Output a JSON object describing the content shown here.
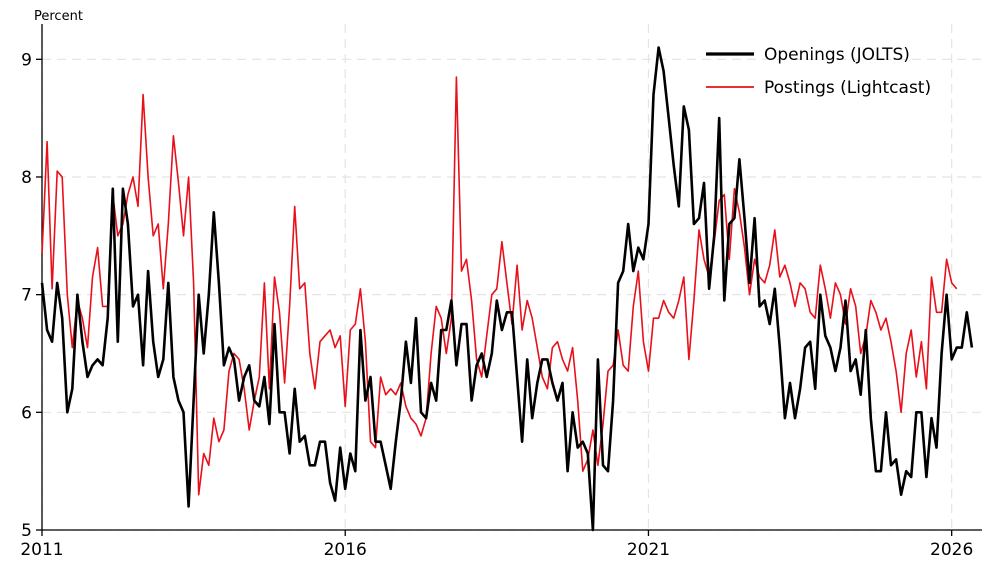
{
  "chart_data": {
    "type": "line",
    "title": "",
    "xlabel": "",
    "ylabel": "Percent",
    "xlim": [
      2011,
      2026.5
    ],
    "ylim": [
      5,
      9.3
    ],
    "x_ticks": [
      2011,
      2016,
      2021,
      2026
    ],
    "x_tick_labels": [
      "2011",
      "2016",
      "2021",
      "2026"
    ],
    "y_ticks": [
      5,
      6,
      7,
      8,
      9
    ],
    "y_tick_labels": [
      "5",
      "6",
      "7",
      "8",
      "9"
    ],
    "grid": true,
    "legend_position": "top-right",
    "start": "2011-01",
    "frequency": "monthly",
    "series": [
      {
        "name": "Openings (JOLTS)",
        "color": "#000000",
        "values": [
          7.1,
          6.7,
          6.6,
          7.1,
          6.8,
          6.0,
          6.2,
          7.0,
          6.6,
          6.3,
          6.4,
          6.45,
          6.4,
          6.8,
          7.9,
          6.6,
          7.9,
          7.6,
          6.9,
          7.0,
          6.4,
          7.2,
          6.6,
          6.3,
          6.45,
          7.1,
          6.3,
          6.1,
          6.0,
          5.2,
          6.1,
          7.0,
          6.5,
          7.0,
          7.7,
          7.1,
          6.4,
          6.55,
          6.45,
          6.1,
          6.3,
          6.4,
          6.1,
          6.05,
          6.3,
          5.9,
          6.75,
          6.0,
          6.0,
          5.65,
          6.2,
          5.75,
          5.8,
          5.55,
          5.55,
          5.75,
          5.75,
          5.4,
          5.25,
          5.7,
          5.35,
          5.65,
          5.5,
          6.7,
          6.1,
          6.3,
          5.75,
          5.75,
          5.55,
          5.35,
          5.75,
          6.1,
          6.6,
          6.25,
          6.8,
          6.0,
          5.95,
          6.25,
          6.1,
          6.7,
          6.7,
          6.95,
          6.4,
          6.75,
          6.75,
          6.1,
          6.4,
          6.5,
          6.3,
          6.5,
          6.95,
          6.7,
          6.85,
          6.85,
          6.3,
          5.75,
          6.45,
          5.95,
          6.25,
          6.45,
          6.45,
          6.25,
          6.1,
          6.25,
          5.5,
          6.0,
          5.7,
          5.75,
          5.65,
          5.0,
          6.45,
          5.55,
          5.5,
          6.1,
          7.1,
          7.2,
          7.6,
          7.2,
          7.4,
          7.3,
          7.6,
          8.7,
          9.1,
          8.9,
          8.5,
          8.1,
          7.75,
          8.6,
          8.4,
          7.6,
          7.65,
          7.95,
          7.05,
          7.5,
          8.5,
          6.95,
          7.6,
          7.65,
          8.15,
          7.65,
          7.1,
          7.65,
          6.9,
          6.95,
          6.75,
          7.05,
          6.55,
          5.95,
          6.25,
          5.95,
          6.2,
          6.55,
          6.6,
          6.2,
          7.0,
          6.65,
          6.55,
          6.35,
          6.55,
          6.95,
          6.35,
          6.45,
          6.15,
          6.7,
          5.95,
          5.5,
          5.5,
          6.0,
          5.55,
          5.6,
          5.3,
          5.5,
          5.45,
          6.0,
          6.0,
          5.45,
          5.95,
          5.7,
          6.5,
          7.0,
          6.45,
          6.55,
          6.55,
          6.85,
          6.55
        ]
      },
      {
        "name": "Postings (Lightcast)",
        "color": "#e8101a",
        "values": [
          7.35,
          8.3,
          7.05,
          8.05,
          8.0,
          7.0,
          6.55,
          6.95,
          6.8,
          6.55,
          7.15,
          7.4,
          6.9,
          6.9,
          7.85,
          7.5,
          7.6,
          7.85,
          8.0,
          7.75,
          8.7,
          8.0,
          7.5,
          7.6,
          7.05,
          7.6,
          8.35,
          7.95,
          7.5,
          8.0,
          7.1,
          5.3,
          5.65,
          5.55,
          5.95,
          5.75,
          5.85,
          6.35,
          6.5,
          6.45,
          6.2,
          5.85,
          6.1,
          6.3,
          7.1,
          6.2,
          7.15,
          6.85,
          6.25,
          6.9,
          7.75,
          7.05,
          7.1,
          6.5,
          6.2,
          6.6,
          6.65,
          6.7,
          6.55,
          6.65,
          6.05,
          6.7,
          6.75,
          7.05,
          6.6,
          5.75,
          5.7,
          6.3,
          6.15,
          6.2,
          6.15,
          6.25,
          6.05,
          5.95,
          5.9,
          5.8,
          5.95,
          6.5,
          6.9,
          6.8,
          6.5,
          6.8,
          8.85,
          7.2,
          7.3,
          6.95,
          6.45,
          6.3,
          6.65,
          7.0,
          7.05,
          7.45,
          7.1,
          6.75,
          7.25,
          6.7,
          6.95,
          6.8,
          6.55,
          6.3,
          6.2,
          6.55,
          6.6,
          6.45,
          6.35,
          6.55,
          6.1,
          5.5,
          5.6,
          5.85,
          5.55,
          5.9,
          6.35,
          6.4,
          6.7,
          6.4,
          6.35,
          6.9,
          7.2,
          6.6,
          6.35,
          6.8,
          6.8,
          6.95,
          6.85,
          6.8,
          6.95,
          7.15,
          6.45,
          6.95,
          7.55,
          7.3,
          7.15,
          7.45,
          7.8,
          7.85,
          7.3,
          7.9,
          7.7,
          7.4,
          7.0,
          7.3,
          7.15,
          7.1,
          7.25,
          7.55,
          7.15,
          7.25,
          7.1,
          6.9,
          7.1,
          7.05,
          6.85,
          6.8,
          7.25,
          7.05,
          6.8,
          7.1,
          7.0,
          6.75,
          7.05,
          6.9,
          6.5,
          6.65,
          6.95,
          6.85,
          6.7,
          6.8,
          6.6,
          6.35,
          6.0,
          6.5,
          6.7,
          6.3,
          6.6,
          6.2,
          7.15,
          6.85,
          6.85,
          7.3,
          7.1,
          7.05
        ]
      }
    ]
  }
}
